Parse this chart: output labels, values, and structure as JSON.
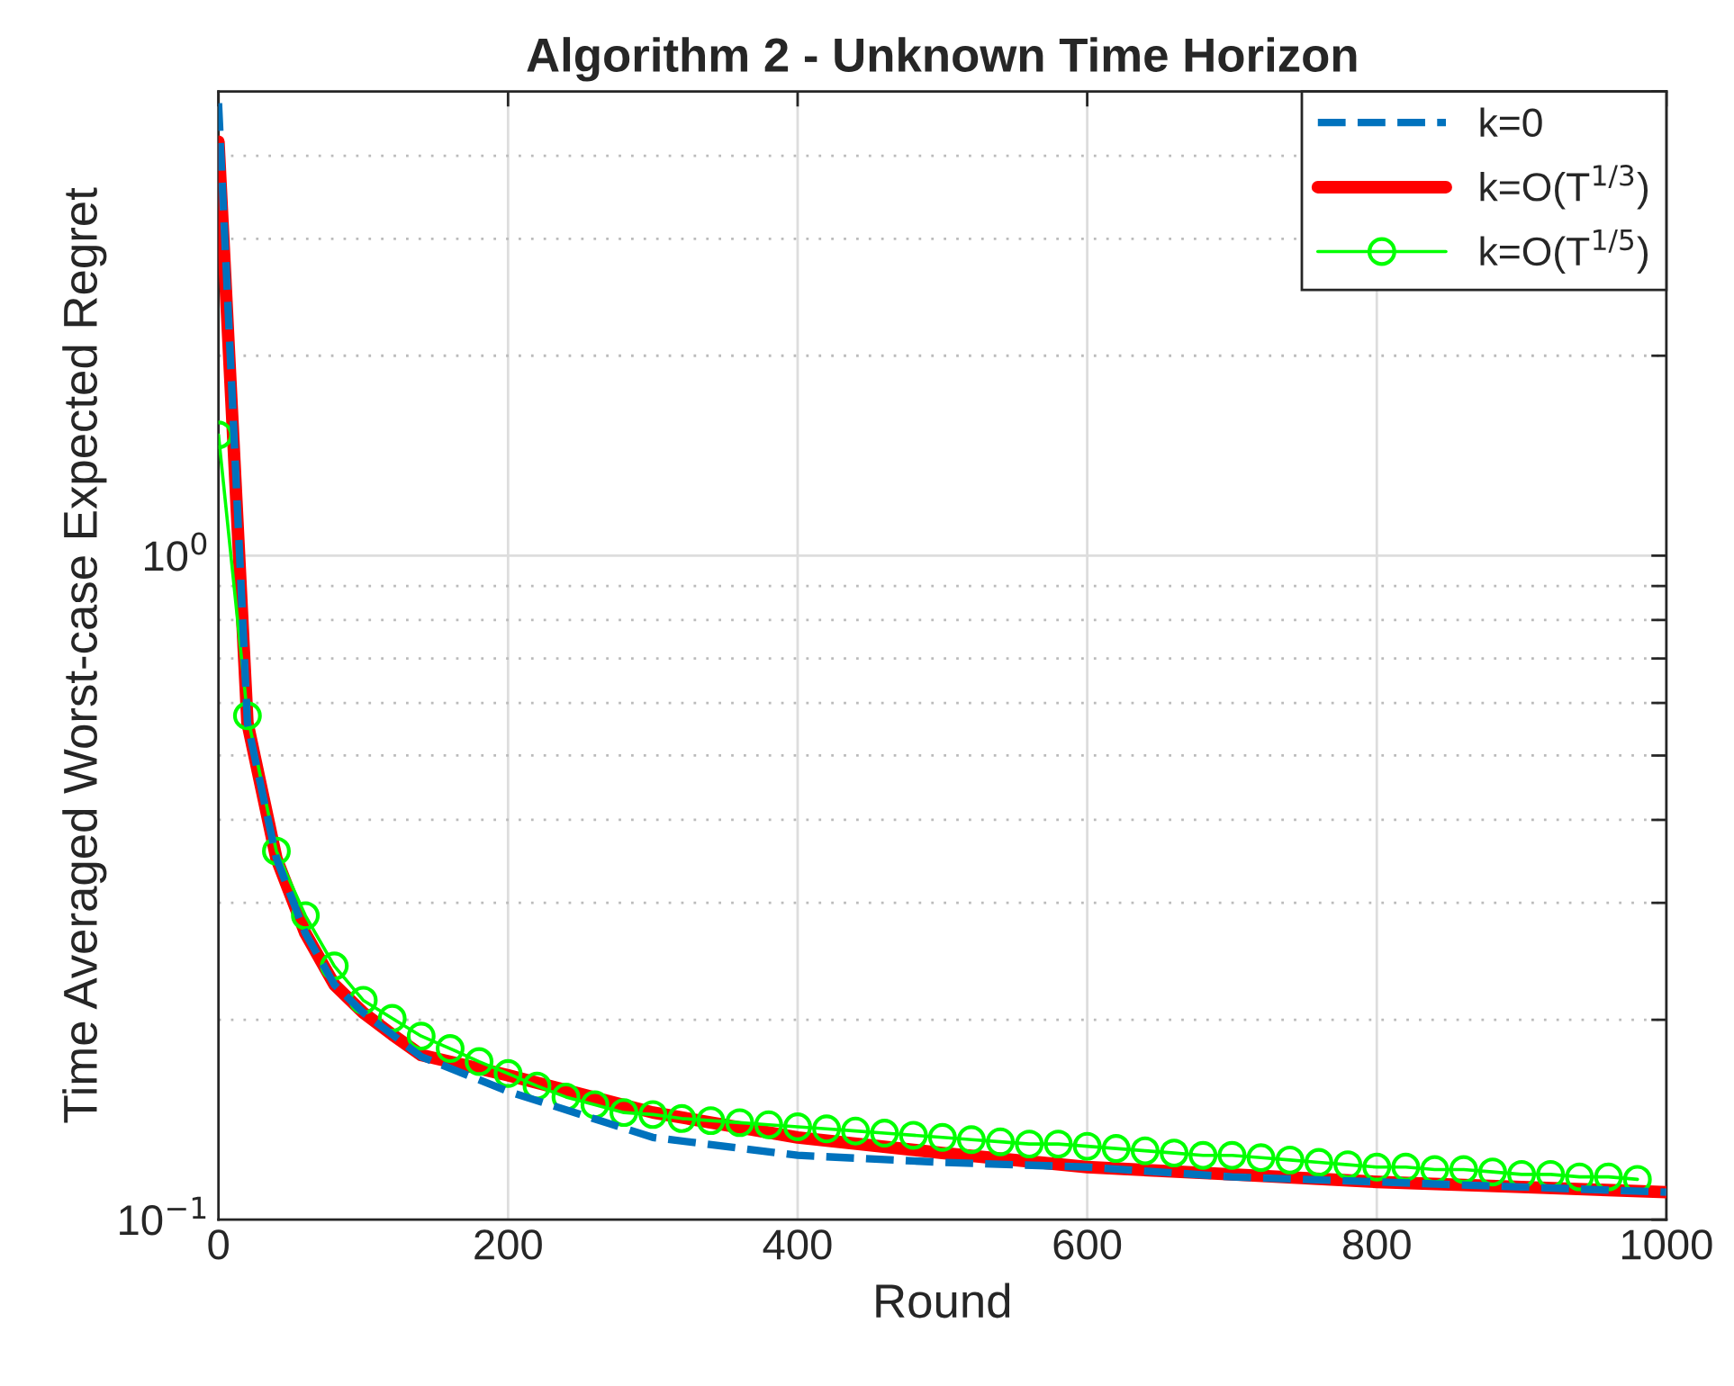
{
  "chart_data": {
    "type": "line",
    "title": "Algorithm 2 - Unknown Time Horizon",
    "xlabel": "Round",
    "ylabel": "Time Averaged Worst-case Expected Regret",
    "log": "y",
    "xlim": [
      0,
      1000
    ],
    "xticks": [
      0,
      200,
      400,
      600,
      800,
      1000
    ],
    "ylim": [
      0.1,
      5
    ],
    "yticks": [
      {
        "value": 0.1,
        "label": "10$^{−1}$"
      },
      {
        "value": 0.2,
        "label": null
      },
      {
        "value": 0.3,
        "label": null
      },
      {
        "value": 0.4,
        "label": null
      },
      {
        "value": 0.5,
        "label": null
      },
      {
        "value": 0.6,
        "label": null
      },
      {
        "value": 0.7,
        "label": null
      },
      {
        "value": 0.8,
        "label": null
      },
      {
        "value": 0.9,
        "label": null
      },
      {
        "value": 1,
        "label": "10$^{0}$"
      },
      {
        "value": 2,
        "label": null
      },
      {
        "value": 3,
        "label": null
      },
      {
        "value": 4,
        "label": null
      },
      {
        "value": 5,
        "label": null
      }
    ],
    "grid": true,
    "legend": "top right",
    "series": [
      {
        "name": "k=0",
        "color": "#0072bd",
        "line_style": "dashed",
        "marker": "none",
        "x": [
          0,
          20,
          40,
          60,
          80,
          100,
          120,
          140,
          200,
          300,
          400,
          500,
          600,
          700,
          800,
          900,
          1000
        ],
        "values": [
          4.8,
          0.56,
          0.35,
          0.27,
          0.226,
          0.205,
          0.19,
          0.176,
          0.156,
          0.133,
          0.125,
          0.122,
          0.12,
          0.116,
          0.114,
          0.112,
          0.11
        ]
      },
      {
        "name": "k=O(T$^{1/3}$)",
        "color": "#ff0000",
        "line_style": "solid",
        "marker": "none",
        "x": [
          0,
          20,
          40,
          60,
          80,
          100,
          120,
          140,
          200,
          300,
          400,
          500,
          600,
          700,
          800,
          900,
          1000
        ],
        "values": [
          4.2,
          0.56,
          0.35,
          0.27,
          0.226,
          0.205,
          0.19,
          0.177,
          0.165,
          0.145,
          0.133,
          0.126,
          0.12,
          0.117,
          0.114,
          0.112,
          0.11
        ]
      },
      {
        "name": "k=O(T$^{1/5}$)",
        "color": "#00ff00",
        "line_style": "solid",
        "marker": "circle",
        "x": [
          0,
          20,
          40,
          60,
          80,
          100,
          120,
          140,
          160,
          180,
          200,
          220,
          240,
          260,
          280,
          300,
          320,
          340,
          360,
          380,
          400,
          420,
          440,
          460,
          480,
          500,
          520,
          540,
          560,
          580,
          600,
          620,
          640,
          660,
          680,
          700,
          720,
          740,
          760,
          780,
          800,
          820,
          840,
          860,
          880,
          900,
          920,
          940,
          960,
          980
        ],
        "values": [
          1.52,
          0.574,
          0.359,
          0.287,
          0.241,
          0.214,
          0.201,
          0.189,
          0.181,
          0.173,
          0.166,
          0.159,
          0.153,
          0.149,
          0.145,
          0.144,
          0.142,
          0.141,
          0.14,
          0.139,
          0.138,
          0.137,
          0.136,
          0.135,
          0.134,
          0.133,
          0.132,
          0.131,
          0.13,
          0.13,
          0.129,
          0.128,
          0.127,
          0.126,
          0.125,
          0.125,
          0.124,
          0.123,
          0.122,
          0.121,
          0.12,
          0.12,
          0.119,
          0.119,
          0.118,
          0.117,
          0.117,
          0.116,
          0.116,
          0.115
        ]
      }
    ]
  }
}
